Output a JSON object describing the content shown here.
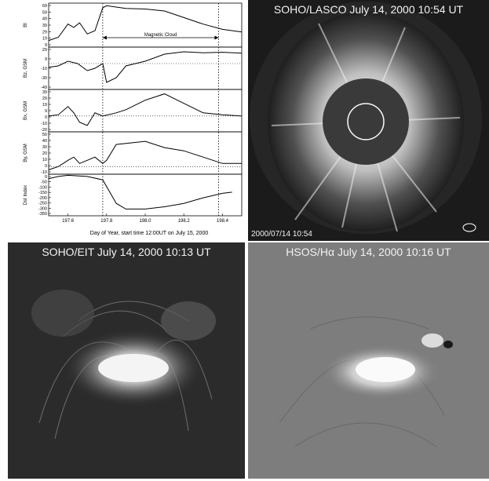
{
  "plots": {
    "panels": [
      {
        "ylabel": "Bt",
        "ticks": [
          "69",
          "59",
          "49",
          "39",
          "29",
          "19",
          "9"
        ]
      },
      {
        "ylabel": "Bz, GSM",
        "ticks": [
          "29",
          "9",
          "-10",
          "-30",
          "-49"
        ]
      },
      {
        "ylabel": "Bx, GSM",
        "ticks": [
          "39",
          "29",
          "19",
          "9",
          "0",
          "-10",
          "-20"
        ]
      },
      {
        "ylabel": "By, GSM",
        "ticks": [
          "50",
          "40",
          "30",
          "20",
          "10",
          "0",
          "-10"
        ]
      },
      {
        "ylabel": "Dst Index",
        "ticks": [
          "0",
          "-50",
          "-100",
          "-150",
          "-200",
          "-250",
          "-300",
          "-350"
        ]
      }
    ],
    "annotation": "Magnetic Cloud",
    "x_ticks": [
      "197.6",
      "197.8",
      "198.0",
      "198.2",
      "198.4"
    ],
    "xlabel": "Day of Year, start time 12:00UT on July 15, 2000"
  },
  "chart_data": {
    "type": "line",
    "xlim": [
      197.5,
      198.5
    ],
    "markers": [
      197.78,
      198.38
    ],
    "series": [
      {
        "panel": 0,
        "x": [
          197.5,
          197.55,
          197.6,
          197.63,
          197.66,
          197.7,
          197.74,
          197.78,
          197.8,
          197.9,
          198.0,
          198.1,
          198.2,
          198.3,
          198.4,
          198.5
        ],
        "y": [
          15,
          20,
          40,
          35,
          42,
          25,
          30,
          65,
          68,
          64,
          63,
          60,
          50,
          40,
          32,
          28
        ]
      },
      {
        "panel": 1,
        "x": [
          197.5,
          197.55,
          197.6,
          197.65,
          197.7,
          197.74,
          197.78,
          197.8,
          197.85,
          197.9,
          198.0,
          198.1,
          198.2,
          198.3,
          198.4,
          198.5
        ],
        "y": [
          -8,
          -5,
          5,
          0,
          -15,
          -10,
          0,
          -40,
          -30,
          -5,
          5,
          20,
          25,
          23,
          24,
          22
        ]
      },
      {
        "panel": 2,
        "x": [
          197.5,
          197.55,
          197.6,
          197.63,
          197.66,
          197.7,
          197.74,
          197.78,
          197.85,
          197.9,
          198.0,
          198.1,
          198.2,
          198.3,
          198.4,
          198.5
        ],
        "y": [
          0,
          2,
          15,
          5,
          -10,
          -15,
          5,
          0,
          5,
          10,
          25,
          35,
          20,
          5,
          2,
          0
        ]
      },
      {
        "panel": 3,
        "x": [
          197.5,
          197.55,
          197.6,
          197.63,
          197.66,
          197.7,
          197.74,
          197.78,
          197.8,
          197.85,
          198.0,
          198.1,
          198.2,
          198.3,
          198.4,
          198.5
        ],
        "y": [
          -5,
          0,
          10,
          15,
          5,
          10,
          15,
          5,
          10,
          35,
          40,
          30,
          25,
          15,
          5,
          5
        ]
      },
      {
        "panel": 4,
        "x": [
          197.5,
          197.55,
          197.6,
          197.7,
          197.78,
          197.85,
          197.9,
          198.0,
          198.1,
          198.2,
          198.3,
          198.4,
          198.45
        ],
        "y": [
          -30,
          -10,
          0,
          -10,
          -40,
          -250,
          -300,
          -300,
          -280,
          -250,
          -200,
          -160,
          -150
        ]
      }
    ],
    "ylims": [
      [
        5,
        72
      ],
      [
        -55,
        35
      ],
      [
        -25,
        42
      ],
      [
        -12,
        55
      ],
      [
        -360,
        10
      ]
    ]
  },
  "images": {
    "lasco": {
      "title": "SOHO/LASCO July 14, 2000 10:54 UT",
      "stamp": "2000/07/14  10:54"
    },
    "eit": {
      "title": "SOHO/EIT July 14, 2000 10:13 UT"
    },
    "halpha": {
      "title": "HSOS/Hα July 14, 2000 10:16 UT"
    }
  }
}
